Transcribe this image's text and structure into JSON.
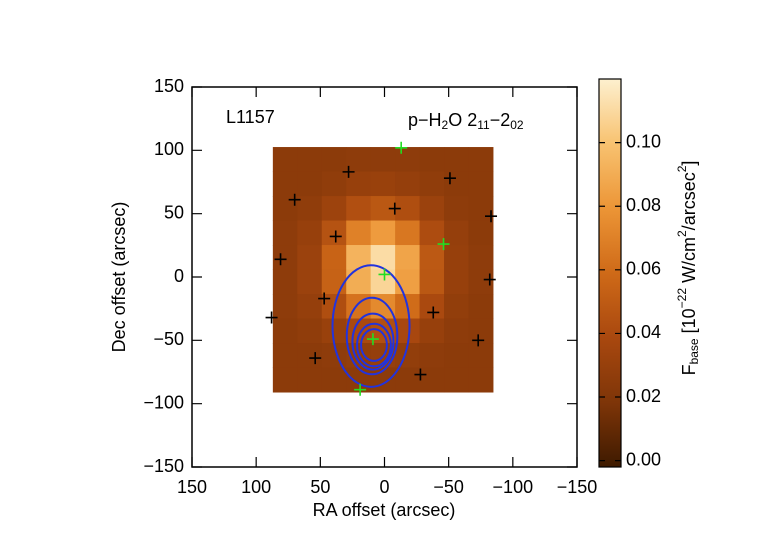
{
  "chart_data": {
    "type": "map",
    "xlabel": "RA offset (arcsec)",
    "ylabel": "Dec offset (arcsec)",
    "source_label": "L1157",
    "line_label": [
      {
        "text": "p−H"
      },
      {
        "text": "2",
        "script": "sub"
      },
      {
        "text": "O 2"
      },
      {
        "text": "11",
        "script": "sub"
      },
      {
        "text": "−2"
      },
      {
        "text": "02",
        "script": "sub"
      }
    ],
    "xlim": [
      150,
      -150
    ],
    "ylim": [
      -150,
      150
    ],
    "xticks": [
      150,
      100,
      50,
      0,
      {
        "value": -50,
        "label": "−50"
      },
      {
        "value": -100,
        "label": "−100"
      },
      {
        "value": -150,
        "label": "−150"
      }
    ],
    "yticks": [
      150,
      100,
      50,
      0,
      {
        "value": -50,
        "label": "−50"
      },
      {
        "value": -100,
        "label": "−100"
      },
      {
        "value": -150,
        "label": "−150"
      }
    ],
    "image": {
      "extent_x": [
        87,
        -84.5
      ],
      "extent_y": [
        102.6,
        -90.8
      ],
      "values": [
        [
          0.025,
          0.025,
          0.025,
          0.026,
          0.026,
          0.026,
          0.025,
          0.025,
          0.025
        ],
        [
          0.025,
          0.025,
          0.027,
          0.03,
          0.031,
          0.029,
          0.027,
          0.025,
          0.025
        ],
        [
          0.025,
          0.027,
          0.033,
          0.043,
          0.048,
          0.042,
          0.032,
          0.026,
          0.025
        ],
        [
          0.026,
          0.03,
          0.045,
          0.07,
          0.082,
          0.065,
          0.041,
          0.029,
          0.025
        ],
        [
          0.026,
          0.032,
          0.055,
          0.093,
          0.111,
          0.086,
          0.049,
          0.03,
          0.026
        ],
        [
          0.026,
          0.032,
          0.054,
          0.09,
          0.108,
          0.084,
          0.048,
          0.03,
          0.026
        ],
        [
          0.026,
          0.029,
          0.042,
          0.063,
          0.074,
          0.06,
          0.039,
          0.028,
          0.025
        ],
        [
          0.025,
          0.027,
          0.031,
          0.039,
          0.043,
          0.038,
          0.03,
          0.026,
          0.025
        ],
        [
          0.025,
          0.025,
          0.026,
          0.028,
          0.029,
          0.028,
          0.026,
          0.025,
          0.025
        ],
        [
          0.025,
          0.025,
          0.025,
          0.025,
          0.025,
          0.025,
          0.025,
          0.025,
          0.025
        ]
      ]
    },
    "colormap": [
      "#3e1a00",
      "#7e3508",
      "#a9480f",
      "#cf6a18",
      "#ec9536",
      "#f8c270",
      "#fdf0cf"
    ],
    "clim": [
      -0.002,
      0.12
    ],
    "cticks": [
      {
        "value": 0,
        "label": "0.00"
      },
      0.02,
      0.04,
      0.06,
      0.08,
      {
        "value": 0.1,
        "label": "0.10"
      }
    ],
    "colorbar_label": [
      {
        "text": "F"
      },
      {
        "text": "base",
        "script": "sub"
      },
      {
        "text": " [10"
      },
      {
        "text": "−22",
        "script": "sup"
      },
      {
        "text": " W/cm"
      },
      {
        "text": "2",
        "script": "sup"
      },
      {
        "text": "/arcsec"
      },
      {
        "text": "2",
        "script": "sup"
      },
      {
        "text": "]"
      }
    ],
    "contour_color": "#2233dd",
    "contours": [
      {
        "center": [
          10.5,
          -38.7
        ],
        "radii": [
          30,
          48
        ]
      },
      {
        "center": [
          9.7,
          -46.6
        ],
        "radii": [
          19.7,
          30.2
        ]
      },
      {
        "center": [
          9,
          -51
        ],
        "radii": [
          16,
          22.1
        ]
      },
      {
        "center": [
          8.2,
          -53.7
        ],
        "radii": [
          13.2,
          16.8
        ]
      },
      {
        "center": [
          8.2,
          -53.7
        ],
        "radii": [
          10.1,
          12.5
        ]
      }
    ],
    "series": [
      {
        "color": "#000000",
        "x": [
          28,
          70,
          -8,
          -51,
          -83,
          38,
          81,
          -82,
          47,
          -38,
          88,
          54,
          -28,
          -73
        ],
        "y": [
          83,
          61,
          54,
          78,
          48,
          32,
          14,
          -2,
          -17,
          -28,
          -32,
          -64,
          -77,
          -50
        ]
      },
      {
        "color": "#22dd22",
        "x": [
          -13,
          -46,
          0,
          9,
          19
        ],
        "y": [
          102,
          26,
          2,
          -49,
          -89
        ]
      }
    ]
  }
}
